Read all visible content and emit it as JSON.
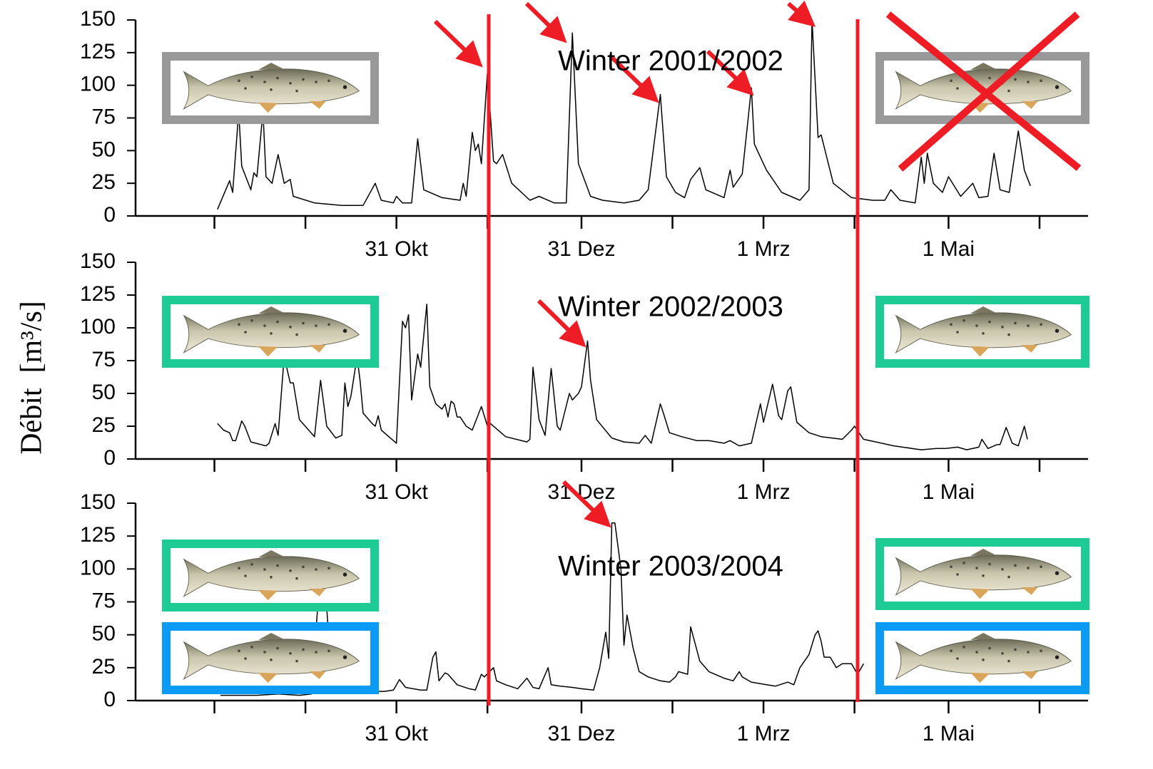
{
  "y_label": "Débit  [m³/s]",
  "chart_data": [
    {
      "type": "line",
      "title": "Winter 2001/2002",
      "color": "#000000",
      "xlim": [
        -26,
        288
      ],
      "ylim": [
        0,
        150
      ],
      "yticks": [
        0,
        25,
        50,
        75,
        100,
        125,
        150
      ],
      "xticks": [
        {
          "value": 60,
          "label": "31 Okt"
        },
        {
          "value": 121,
          "label": "31 Dez"
        },
        {
          "value": 181,
          "label": "1 Mrz"
        },
        {
          "value": 242,
          "label": "1 Mai"
        }
      ],
      "xticks_unlabeled": [
        0,
        30,
        90,
        151,
        211,
        272
      ],
      "x": [
        1,
        5,
        6,
        8,
        9,
        12,
        13,
        14,
        16,
        17,
        19,
        21,
        23,
        25,
        26,
        33,
        42,
        49,
        53,
        55,
        59,
        60,
        62,
        65,
        67,
        69,
        75,
        81,
        82,
        83,
        85,
        86,
        87,
        88,
        90,
        92,
        93,
        95,
        98,
        104,
        107,
        112,
        116,
        118,
        120,
        124,
        128,
        135,
        140,
        143,
        147,
        149,
        152,
        155,
        157,
        160,
        162,
        168,
        170,
        171,
        174,
        177,
        178,
        182,
        187,
        193,
        196,
        197,
        199,
        200,
        204,
        210,
        217,
        221,
        223,
        226,
        231,
        233,
        234,
        235,
        237,
        240,
        242,
        246,
        250,
        252,
        255,
        257,
        259,
        262,
        265,
        267,
        269
      ],
      "values": [
        5,
        27,
        18,
        80,
        38,
        20,
        33,
        30,
        80,
        30,
        25,
        47,
        25,
        28,
        15,
        10,
        8,
        8,
        25,
        12,
        10,
        15,
        10,
        10,
        59,
        20,
        14,
        12,
        25,
        15,
        64,
        50,
        55,
        40,
        110,
        42,
        40,
        47,
        25,
        12,
        15,
        10,
        10,
        140,
        40,
        15,
        12,
        10,
        12,
        20,
        93,
        30,
        18,
        14,
        28,
        37,
        20,
        14,
        35,
        22,
        32,
        98,
        55,
        35,
        18,
        12,
        20,
        150,
        60,
        62,
        25,
        14,
        12,
        12,
        20,
        12,
        10,
        45,
        25,
        48,
        25,
        18,
        30,
        15,
        25,
        14,
        15,
        48,
        20,
        18,
        65,
        35,
        23
      ]
    },
    {
      "type": "line",
      "title": "Winter 2002/2003",
      "color": "#000000",
      "xlim": [
        -26,
        288
      ],
      "ylim": [
        0,
        150
      ],
      "yticks": [
        0,
        25,
        50,
        75,
        100,
        125,
        150
      ],
      "xticks": [
        {
          "value": 60,
          "label": "31 Okt"
        },
        {
          "value": 121,
          "label": "31 Dez"
        },
        {
          "value": 181,
          "label": "1 Mrz"
        },
        {
          "value": 242,
          "label": "1 Mai"
        }
      ],
      "xticks_unlabeled": [
        0,
        30,
        90,
        151,
        211,
        272
      ],
      "x": [
        1,
        3,
        5,
        6,
        7,
        9,
        10,
        12,
        17,
        18,
        20,
        21,
        23,
        25,
        26,
        28,
        33,
        35,
        37,
        40,
        42,
        43,
        44,
        45,
        47,
        48,
        49,
        52,
        53,
        54,
        55,
        60,
        62,
        63,
        64,
        65,
        67,
        68,
        70,
        71,
        73,
        75,
        76,
        77,
        78,
        79,
        80,
        81,
        83,
        85,
        88,
        90,
        91,
        96,
        103,
        104,
        105,
        107,
        109,
        111,
        113,
        114,
        117,
        118,
        120,
        121,
        123,
        124,
        126,
        131,
        135,
        140,
        142,
        144,
        147,
        148,
        150,
        154,
        159,
        163,
        168,
        170,
        173,
        177,
        180,
        181,
        184,
        186,
        187,
        189,
        190,
        192,
        196,
        200,
        207,
        210,
        211,
        214,
        224,
        233,
        238,
        241,
        245,
        248,
        252,
        253,
        255,
        258,
        259,
        261,
        263,
        265,
        267,
        268
      ],
      "values": [
        27,
        22,
        20,
        14,
        14,
        29,
        25,
        13,
        10,
        12,
        27,
        18,
        78,
        58,
        58,
        30,
        17,
        60,
        25,
        16,
        18,
        58,
        40,
        48,
        78,
        60,
        35,
        27,
        25,
        33,
        22,
        12,
        105,
        100,
        110,
        45,
        80,
        70,
        118,
        55,
        42,
        38,
        42,
        32,
        44,
        42,
        32,
        32,
        25,
        22,
        40,
        25,
        27,
        17,
        13,
        15,
        70,
        30,
        18,
        69,
        25,
        22,
        50,
        45,
        50,
        55,
        90,
        60,
        30,
        16,
        13,
        12,
        18,
        12,
        42,
        35,
        20,
        17,
        14,
        14,
        12,
        14,
        10,
        12,
        42,
        28,
        57,
        33,
        30,
        52,
        55,
        28,
        20,
        17,
        15,
        22,
        25,
        15,
        10,
        7,
        8,
        8,
        9,
        7,
        9,
        15,
        8,
        11,
        11,
        24,
        12,
        10,
        25,
        15
      ]
    },
    {
      "type": "line",
      "title": "Winter 2003/2004",
      "color": "#000000",
      "xlim": [
        -26,
        288
      ],
      "ylim": [
        0,
        150
      ],
      "yticks": [
        0,
        25,
        50,
        75,
        100,
        125,
        150
      ],
      "xticks": [
        {
          "value": 60,
          "label": "31 Okt"
        },
        {
          "value": 121,
          "label": "31 Dez"
        },
        {
          "value": 181,
          "label": "1 Mrz"
        },
        {
          "value": 242,
          "label": "1 Mai"
        }
      ],
      "xticks_unlabeled": [
        0,
        30,
        90,
        151,
        211,
        272
      ],
      "x": [
        2,
        7,
        14,
        21,
        28,
        32,
        34,
        37,
        38,
        40,
        42,
        47,
        52,
        56,
        59,
        61,
        63,
        68,
        70,
        72,
        73,
        74,
        76,
        77,
        80,
        84,
        86,
        88,
        89,
        92,
        93,
        96,
        100,
        103,
        105,
        107,
        110,
        111,
        114,
        118,
        121,
        125,
        127,
        129,
        130,
        131,
        132,
        134,
        135,
        136,
        138,
        140,
        143,
        147,
        150,
        152,
        153,
        156,
        157,
        160,
        163,
        168,
        171,
        173,
        174,
        177,
        182,
        185,
        189,
        191,
        193,
        196,
        198,
        199,
        200,
        201,
        203,
        205,
        207,
        210,
        212,
        214
      ],
      "values": [
        4,
        4,
        4,
        5,
        4,
        5,
        70,
        70,
        40,
        10,
        8,
        8,
        7,
        7,
        8,
        16,
        10,
        8,
        8,
        33,
        37,
        15,
        21,
        20,
        12,
        9,
        8,
        20,
        18,
        25,
        15,
        12,
        9,
        17,
        10,
        9,
        25,
        12,
        11,
        10,
        9,
        8,
        25,
        52,
        32,
        135,
        135,
        100,
        42,
        65,
        40,
        22,
        18,
        15,
        14,
        18,
        22,
        20,
        56,
        30,
        22,
        17,
        15,
        22,
        18,
        14,
        12,
        11,
        14,
        12,
        25,
        35,
        50,
        53,
        45,
        33,
        33,
        25,
        28,
        28,
        20,
        28
      ]
    }
  ]
}
